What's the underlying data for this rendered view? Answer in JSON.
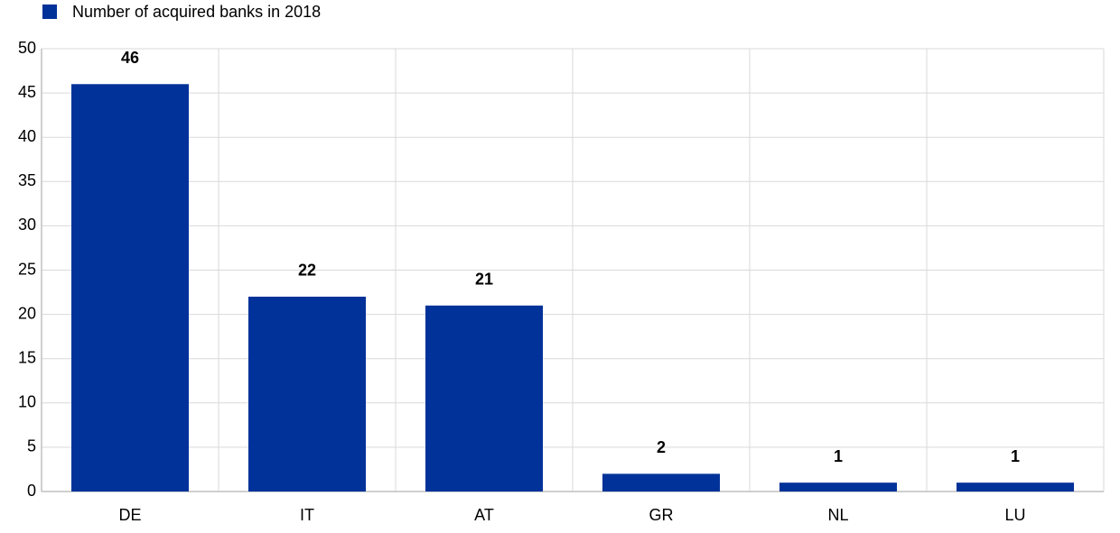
{
  "chart_data": {
    "type": "bar",
    "categories": [
      "DE",
      "IT",
      "AT",
      "GR",
      "NL",
      "LU"
    ],
    "series": [
      {
        "name": "Number of acquired banks in 2018",
        "color": "#003299",
        "values": [
          46,
          22,
          21,
          2,
          1,
          1
        ]
      }
    ],
    "ylim": [
      0,
      50
    ],
    "yticks": [
      0,
      5,
      10,
      15,
      20,
      25,
      30,
      35,
      40,
      45,
      50
    ],
    "grid": true,
    "legend": "top-left"
  }
}
